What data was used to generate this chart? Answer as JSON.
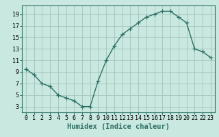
{
  "x": [
    0,
    1,
    2,
    3,
    4,
    5,
    6,
    7,
    8,
    9,
    10,
    11,
    12,
    13,
    14,
    15,
    16,
    17,
    18,
    19,
    20,
    21,
    22,
    23
  ],
  "y": [
    9.5,
    8.5,
    7.0,
    6.5,
    5.0,
    4.5,
    4.0,
    3.0,
    3.0,
    7.5,
    11.0,
    13.5,
    15.5,
    16.5,
    17.5,
    18.5,
    19.0,
    19.5,
    19.5,
    18.5,
    17.5,
    13.0,
    12.5,
    11.5
  ],
  "line_color": "#2d6e63",
  "marker": "+",
  "marker_size": 4,
  "background_color": "#c8e8e0",
  "grid_color": "#a8c8c0",
  "xlabel": "Humidex (Indice chaleur)",
  "xlabel_fontsize": 7.5,
  "ylabel_ticks": [
    3,
    5,
    7,
    9,
    11,
    13,
    15,
    17,
    19
  ],
  "xlim": [
    -0.5,
    23.5
  ],
  "ylim": [
    2.0,
    20.5
  ],
  "xticks": [
    0,
    1,
    2,
    3,
    4,
    5,
    6,
    7,
    8,
    9,
    10,
    11,
    12,
    13,
    14,
    15,
    16,
    17,
    18,
    19,
    20,
    21,
    22,
    23
  ],
  "tick_fontsize": 6,
  "line_width": 1.0,
  "spine_color": "#2d6e63"
}
